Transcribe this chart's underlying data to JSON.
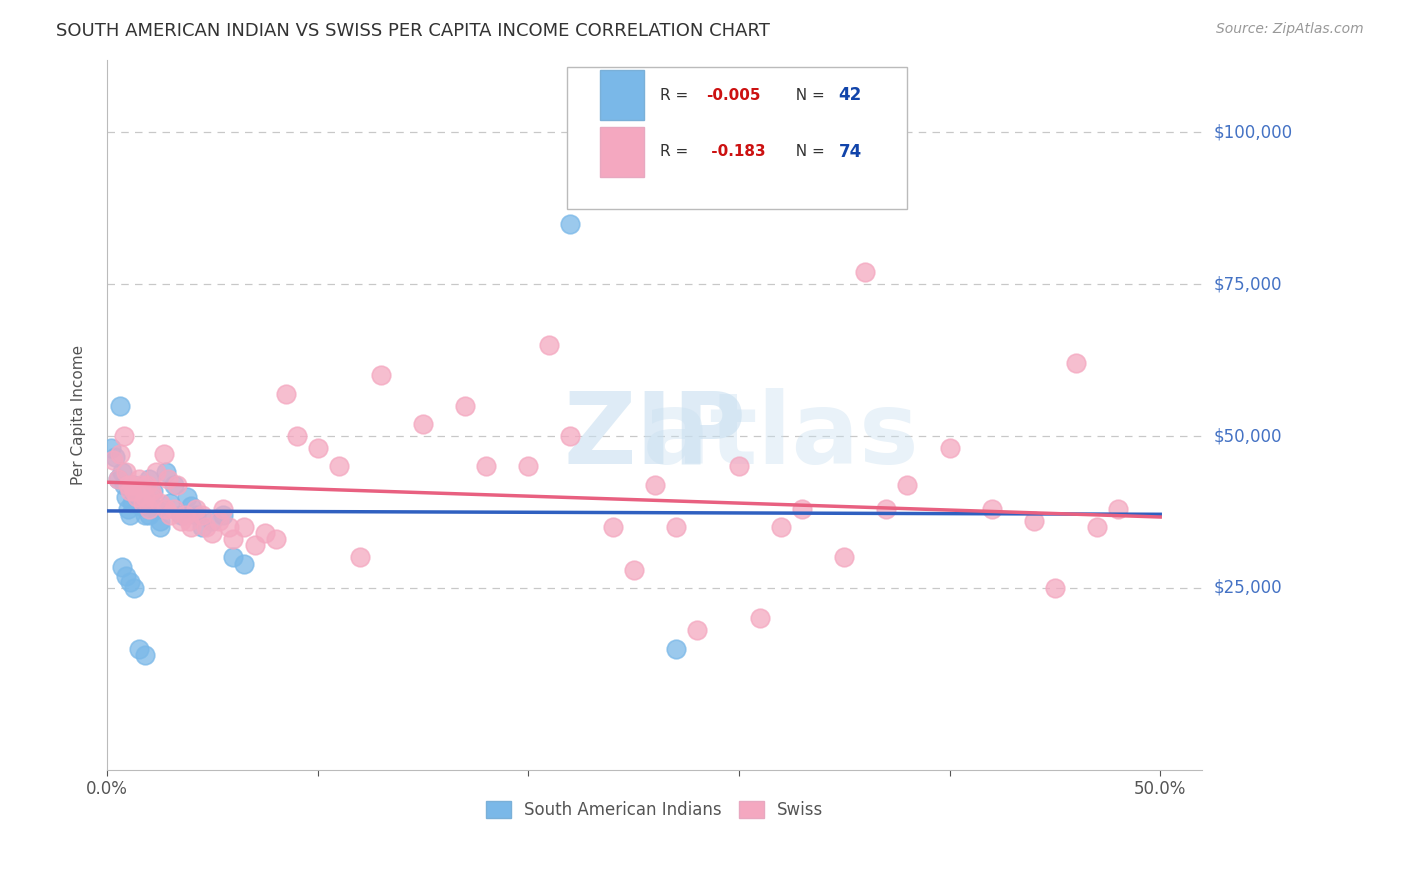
{
  "title": "SOUTH AMERICAN INDIAN VS SWISS PER CAPITA INCOME CORRELATION CHART",
  "source": "Source: ZipAtlas.com",
  "ylabel": "Per Capita Income",
  "xlim": [
    0.0,
    0.52
  ],
  "ylim": [
    -5000,
    112000
  ],
  "blue_color": "#7ab8e8",
  "pink_color": "#f4a8c0",
  "line_blue": "#3060c0",
  "line_pink": "#e86080",
  "background_color": "#ffffff",
  "grid_color": "#c8c8c8",
  "title_color": "#333333",
  "right_tick_color": "#4472c4",
  "sa_x": [
    0.002,
    0.004,
    0.005,
    0.006,
    0.007,
    0.008,
    0.009,
    0.01,
    0.011,
    0.012,
    0.013,
    0.014,
    0.015,
    0.016,
    0.018,
    0.019,
    0.02,
    0.022,
    0.023,
    0.025,
    0.028,
    0.03,
    0.032,
    0.035,
    0.038,
    0.04,
    0.042,
    0.045,
    0.05,
    0.055,
    0.06,
    0.065,
    0.007,
    0.009,
    0.011,
    0.013,
    0.015,
    0.018,
    0.02,
    0.22,
    0.27,
    0.025
  ],
  "sa_y": [
    48000,
    46500,
    43000,
    55000,
    44000,
    42000,
    40000,
    38000,
    37000,
    39000,
    42000,
    41500,
    40000,
    38500,
    37000,
    39000,
    43000,
    41000,
    38000,
    36000,
    44000,
    39000,
    42000,
    37000,
    40000,
    38500,
    37000,
    35000,
    36000,
    37000,
    30000,
    29000,
    28500,
    27000,
    26000,
    25000,
    15000,
    14000,
    37000,
    85000,
    15000,
    35000
  ],
  "sw_x": [
    0.003,
    0.005,
    0.006,
    0.008,
    0.009,
    0.01,
    0.011,
    0.012,
    0.013,
    0.014,
    0.015,
    0.016,
    0.017,
    0.018,
    0.019,
    0.02,
    0.021,
    0.022,
    0.023,
    0.025,
    0.027,
    0.028,
    0.029,
    0.03,
    0.032,
    0.033,
    0.035,
    0.037,
    0.039,
    0.04,
    0.042,
    0.045,
    0.047,
    0.05,
    0.053,
    0.055,
    0.058,
    0.06,
    0.065,
    0.07,
    0.075,
    0.08,
    0.085,
    0.09,
    0.1,
    0.11,
    0.12,
    0.13,
    0.15,
    0.17,
    0.18,
    0.2,
    0.21,
    0.22,
    0.24,
    0.25,
    0.26,
    0.27,
    0.28,
    0.3,
    0.31,
    0.32,
    0.33,
    0.35,
    0.36,
    0.37,
    0.38,
    0.4,
    0.42,
    0.44,
    0.45,
    0.46,
    0.47,
    0.48
  ],
  "sw_y": [
    46000,
    43000,
    47000,
    50000,
    44000,
    42000,
    41000,
    42000,
    41000,
    40000,
    43000,
    42000,
    39000,
    40000,
    42000,
    38000,
    41000,
    40000,
    44000,
    39000,
    47000,
    38000,
    43000,
    37000,
    38000,
    42000,
    36000,
    37000,
    36000,
    35000,
    38000,
    37000,
    35000,
    34000,
    36000,
    38000,
    35000,
    33000,
    35000,
    32000,
    34000,
    33000,
    57000,
    50000,
    48000,
    45000,
    30000,
    60000,
    52000,
    55000,
    45000,
    45000,
    65000,
    50000,
    35000,
    28000,
    42000,
    35000,
    18000,
    45000,
    20000,
    35000,
    38000,
    30000,
    77000,
    38000,
    42000,
    48000,
    38000,
    36000,
    25000,
    62000,
    35000,
    38000
  ],
  "ytick_vals": [
    0,
    25000,
    50000,
    75000,
    100000
  ],
  "ytick_labels_right": [
    "",
    "$25,000",
    "$50,000",
    "$75,000",
    "$100,000"
  ],
  "xtick_vals": [
    0.0,
    0.1,
    0.2,
    0.3,
    0.4,
    0.5
  ],
  "xtick_labels": [
    "0.0%",
    "",
    "",
    "",
    "",
    "50.0%"
  ],
  "blue_line_y0": 38500,
  "blue_line_y1": 38000,
  "pink_line_y0": 42000,
  "pink_line_y1": 35000
}
